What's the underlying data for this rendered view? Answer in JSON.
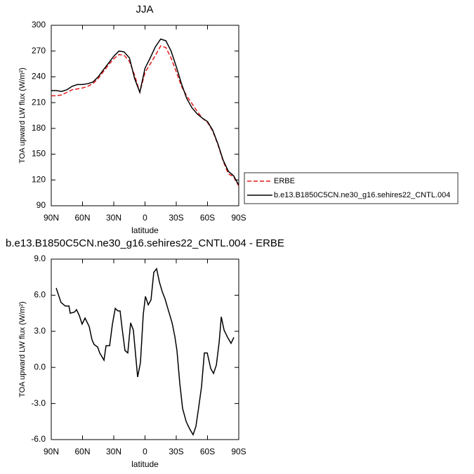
{
  "chart_data": [
    {
      "type": "line",
      "title": "JJA",
      "x_label": "latitude",
      "y_label": "TOA upward LW flux (W/m²)",
      "x": [
        90,
        85,
        80,
        75,
        70,
        65,
        60,
        55,
        50,
        45,
        40,
        35,
        30,
        25,
        20,
        15,
        10,
        5,
        0,
        -5,
        -10,
        -15,
        -20,
        -25,
        -30,
        -35,
        -40,
        -45,
        -50,
        -55,
        -60,
        -65,
        -70,
        -75,
        -80,
        -85,
        -90
      ],
      "series": [
        {
          "name": "ERBE",
          "color": "#e41a1c",
          "dashed": true,
          "values": [
            218,
            218,
            219,
            222,
            225,
            226,
            227,
            229,
            232,
            238,
            246,
            254,
            261,
            266,
            265,
            258,
            242,
            222,
            245,
            255,
            265,
            276,
            274,
            262,
            246,
            229,
            218,
            209,
            200,
            192,
            187,
            177,
            161,
            142,
            127,
            124,
            113
          ]
        },
        {
          "name": "b.e13.B1850C5CN.ne30_g16.sehires22_CNTL.004",
          "color": "#000000",
          "dashed": false,
          "values": [
            224,
            224,
            223,
            225,
            229,
            231,
            231,
            232,
            234,
            240,
            248,
            256,
            264,
            270,
            269,
            262,
            238,
            222,
            250,
            262,
            275,
            284,
            282,
            270,
            252,
            232,
            215,
            204,
            197,
            192,
            188,
            178,
            162,
            143,
            130,
            125,
            114
          ]
        }
      ],
      "xlim": [
        90,
        -90
      ],
      "xticks": [
        {
          "value": 90,
          "label": "90N"
        },
        {
          "value": 60,
          "label": "60N"
        },
        {
          "value": 30,
          "label": "30N"
        },
        0,
        {
          "value": -30,
          "label": "30S"
        },
        {
          "value": -60,
          "label": "60S"
        },
        {
          "value": -90,
          "label": "90S"
        }
      ],
      "ylim": [
        90,
        300
      ],
      "yticks": [
        90,
        120,
        150,
        180,
        210,
        240,
        270,
        300
      ]
    },
    {
      "type": "line",
      "title": "b.e13.B1850C5CN.ne30_g16.sehires22_CNTL.004 - ERBE",
      "x_label": "latitude",
      "y_label": "TOA upward LW flux (W/m²)",
      "x": [
        85.3,
        80.6,
        76.5,
        73,
        71.8,
        67.7,
        65.7,
        63,
        60.4,
        57.6,
        53.6,
        50.9,
        48.9,
        45.5,
        43.5,
        39.4,
        37.4,
        34,
        31.3,
        28.6,
        26,
        23.9,
        21.9,
        19.2,
        16.5,
        13.8,
        11.2,
        7.1,
        4.4,
        1.7,
        -0.4,
        -3.1,
        -5.7,
        -8.4,
        -11.1,
        -13.8,
        -16.5,
        -19.2,
        -22.6,
        -26,
        -28.6,
        -30.7,
        -33.4,
        -36.1,
        -39.5,
        -42.8,
        -46.2,
        -48.9,
        -51.6,
        -54.3,
        -57,
        -59.7,
        -63.1,
        -65.8,
        -68.5,
        -71.2,
        -73.2,
        -75.9,
        -79.3,
        -82.6,
        -85.3
      ],
      "values": [
        6.6,
        5.4,
        5.1,
        5.1,
        4.5,
        4.6,
        4.8,
        4.3,
        3.6,
        4.1,
        3.4,
        2.3,
        1.9,
        1.7,
        1.2,
        0.6,
        1.8,
        1.8,
        3.6,
        4.9,
        4.7,
        4.7,
        3.2,
        1.4,
        1.2,
        3.7,
        3.1,
        -0.8,
        0.4,
        4.4,
        5.9,
        5.2,
        5.6,
        7.9,
        8.2,
        7.1,
        6.3,
        5.7,
        4.7,
        3.7,
        2.6,
        1.4,
        -1.3,
        -3.4,
        -4.5,
        -5.1,
        -5.6,
        -4.9,
        -3.3,
        -1.6,
        1.2,
        1.2,
        -0.1,
        -0.5,
        0.2,
        2.1,
        4.2,
        3.1,
        2.5,
        2.0,
        2.5
      ],
      "color": "#000000",
      "xlim": [
        90,
        -90
      ],
      "xticks": [
        {
          "value": 90,
          "label": "90N"
        },
        {
          "value": 60,
          "label": "60N"
        },
        {
          "value": 30,
          "label": "30N"
        },
        0,
        {
          "value": -30,
          "label": "30S"
        },
        {
          "value": -60,
          "label": "60S"
        },
        {
          "value": -90,
          "label": "90S"
        }
      ],
      "ylim": [
        -6,
        9
      ],
      "yticks": [
        {
          "value": -6,
          "label": "-6.0"
        },
        {
          "value": -3,
          "label": "-3.0"
        },
        {
          "value": 0,
          "label": "0.0"
        },
        {
          "value": 3,
          "label": "3.0"
        },
        {
          "value": 6,
          "label": "6.0"
        },
        {
          "value": 9,
          "label": "9.0"
        }
      ]
    }
  ]
}
